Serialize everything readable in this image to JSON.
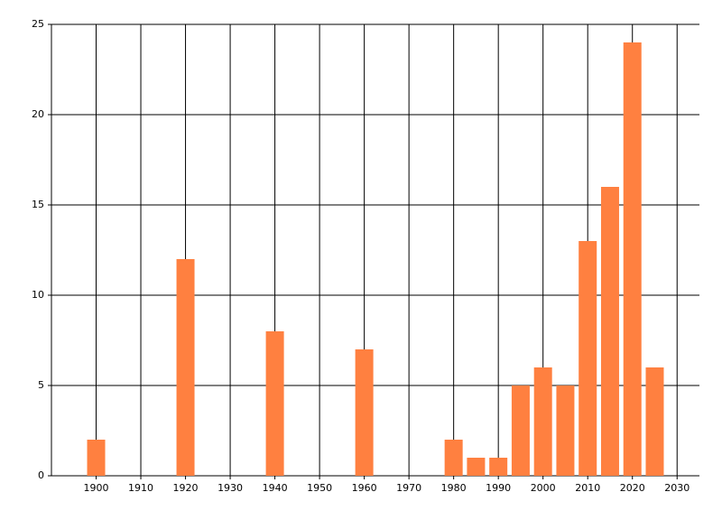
{
  "chart_data": {
    "type": "bar",
    "x": [
      1900,
      1920,
      1940,
      1960,
      1980,
      1985,
      1990,
      1995,
      2000,
      2005,
      2010,
      2015,
      2020,
      2025
    ],
    "values": [
      2,
      12,
      8,
      7,
      2,
      1,
      1,
      5,
      6,
      5,
      13,
      16,
      24,
      6
    ],
    "color": "#ff8040",
    "xlim": [
      1890,
      2035
    ],
    "xticks": [
      1900,
      1910,
      1920,
      1930,
      1940,
      1950,
      1960,
      1970,
      1980,
      1990,
      2000,
      2010,
      2020,
      2030
    ],
    "ylim": [
      0,
      25
    ],
    "yticks": [
      0,
      5,
      10,
      15,
      20,
      25
    ],
    "grid": true
  }
}
